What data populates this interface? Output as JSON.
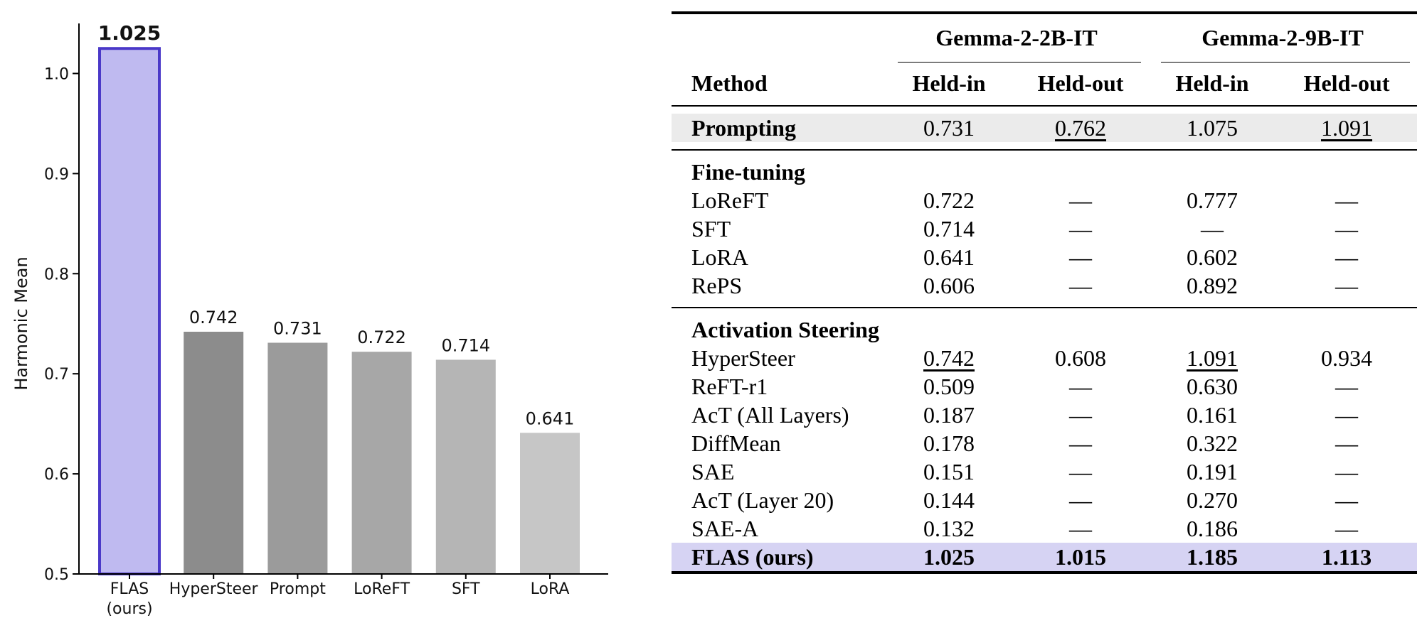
{
  "chart_data": {
    "type": "bar",
    "ylabel": "Harmonic Mean",
    "xlabel": "",
    "ylim": [
      0.5,
      1.05
    ],
    "yticks": [
      0.5,
      0.6,
      0.7,
      0.8,
      0.9,
      1.0
    ],
    "ytick_labels": [
      "0.5",
      "0.6",
      "0.7",
      "0.8",
      "0.9",
      "1.0"
    ],
    "categories": [
      "FLAS\n(ours)",
      "HyperSteer",
      "Prompt",
      "LoReFT",
      "SFT",
      "LoRA"
    ],
    "values": [
      1.025,
      0.742,
      0.731,
      0.722,
      0.714,
      0.641
    ],
    "value_labels": [
      "1.025",
      "0.742",
      "0.731",
      "0.722",
      "0.714",
      "0.641"
    ],
    "bar_colors": [
      "#bfbaf0",
      "#8c8c8c",
      "#9b9b9b",
      "#a7a7a7",
      "#b5b5b5",
      "#c6c6c6"
    ],
    "highlight_edge_color": "#4a38c8",
    "grid": false
  },
  "table": {
    "header": {
      "method": "Method",
      "groups": [
        "Gemma-2-2B-IT",
        "Gemma-2-9B-IT"
      ],
      "subcols": [
        "Held-in",
        "Held-out",
        "Held-in",
        "Held-out"
      ]
    },
    "prompting": {
      "method": "Prompting",
      "values": [
        "0.731",
        "0.762",
        "1.075",
        "1.091"
      ],
      "underline": [
        false,
        true,
        false,
        true
      ]
    },
    "sections": [
      {
        "title": "Fine-tuning",
        "rows": [
          {
            "method": "LoReFT",
            "values": [
              "0.722",
              "—",
              "0.777",
              "—"
            ],
            "underline": [
              false,
              false,
              false,
              false
            ]
          },
          {
            "method": "SFT",
            "values": [
              "0.714",
              "—",
              "—",
              "—"
            ],
            "underline": [
              false,
              false,
              false,
              false
            ]
          },
          {
            "method": "LoRA",
            "values": [
              "0.641",
              "—",
              "0.602",
              "—"
            ],
            "underline": [
              false,
              false,
              false,
              false
            ]
          },
          {
            "method": "RePS",
            "values": [
              "0.606",
              "—",
              "0.892",
              "—"
            ],
            "underline": [
              false,
              false,
              false,
              false
            ]
          }
        ]
      },
      {
        "title": "Activation Steering",
        "rows": [
          {
            "method": "HyperSteer",
            "values": [
              "0.742",
              "0.608",
              "1.091",
              "0.934"
            ],
            "underline": [
              true,
              false,
              true,
              false
            ]
          },
          {
            "method": "ReFT-r1",
            "values": [
              "0.509",
              "—",
              "0.630",
              "—"
            ],
            "underline": [
              false,
              false,
              false,
              false
            ]
          },
          {
            "method": "AcT (All Layers)",
            "values": [
              "0.187",
              "—",
              "0.161",
              "—"
            ],
            "underline": [
              false,
              false,
              false,
              false
            ]
          },
          {
            "method": "DiffMean",
            "values": [
              "0.178",
              "—",
              "0.322",
              "—"
            ],
            "underline": [
              false,
              false,
              false,
              false
            ]
          },
          {
            "method": "SAE",
            "values": [
              "0.151",
              "—",
              "0.191",
              "—"
            ],
            "underline": [
              false,
              false,
              false,
              false
            ]
          },
          {
            "method": "AcT (Layer 20)",
            "values": [
              "0.144",
              "—",
              "0.270",
              "—"
            ],
            "underline": [
              false,
              false,
              false,
              false
            ]
          },
          {
            "method": "SAE-A",
            "values": [
              "0.132",
              "—",
              "0.186",
              "—"
            ],
            "underline": [
              false,
              false,
              false,
              false
            ]
          }
        ]
      }
    ],
    "ours": {
      "method": "FLAS (ours)",
      "values": [
        "1.025",
        "1.015",
        "1.185",
        "1.113"
      ]
    },
    "colors": {
      "prompting_shade": "#ebebeb",
      "ours_shade": "#d6d3f3"
    }
  }
}
